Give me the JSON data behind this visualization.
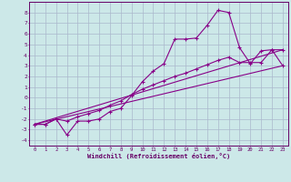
{
  "xlabel": "Windchill (Refroidissement éolien,°C)",
  "bg_color": "#cce8e8",
  "line_color": "#880088",
  "grid_color": "#aab8cc",
  "xlim": [
    -0.5,
    23.5
  ],
  "ylim": [
    -4.5,
    9.0
  ],
  "xticks": [
    0,
    1,
    2,
    3,
    4,
    5,
    6,
    7,
    8,
    9,
    10,
    11,
    12,
    13,
    14,
    15,
    16,
    17,
    18,
    19,
    20,
    21,
    22,
    23
  ],
  "yticks": [
    -4,
    -3,
    -2,
    -1,
    0,
    1,
    2,
    3,
    4,
    5,
    6,
    7,
    8
  ],
  "series1_x": [
    0,
    1,
    2,
    3,
    4,
    5,
    6,
    7,
    8,
    9,
    10,
    11,
    12,
    13,
    14,
    15,
    16,
    17,
    18,
    19,
    20,
    21,
    22,
    23
  ],
  "series1_y": [
    -2.5,
    -2.5,
    -2.0,
    -3.5,
    -2.2,
    -2.2,
    -2.0,
    -1.3,
    -1.0,
    0.2,
    1.5,
    2.5,
    3.2,
    5.5,
    5.5,
    5.6,
    6.8,
    8.2,
    8.0,
    4.7,
    3.2,
    4.4,
    4.5,
    4.5
  ],
  "series2_x": [
    0,
    1,
    2,
    3,
    4,
    5,
    6,
    7,
    8,
    9,
    10,
    11,
    12,
    13,
    14,
    15,
    16,
    17,
    18,
    19,
    20,
    21,
    22,
    23
  ],
  "series2_y": [
    -2.5,
    -2.5,
    -2.0,
    -2.2,
    -1.8,
    -1.5,
    -1.2,
    -0.7,
    -0.3,
    0.3,
    0.8,
    1.2,
    1.6,
    2.0,
    2.3,
    2.7,
    3.1,
    3.5,
    3.8,
    3.3,
    3.3,
    3.3,
    4.5,
    3.0
  ],
  "series3_x": [
    0,
    23
  ],
  "series3_y": [
    -2.5,
    3.0
  ],
  "series4_x": [
    0,
    23
  ],
  "series4_y": [
    -2.5,
    4.5
  ]
}
